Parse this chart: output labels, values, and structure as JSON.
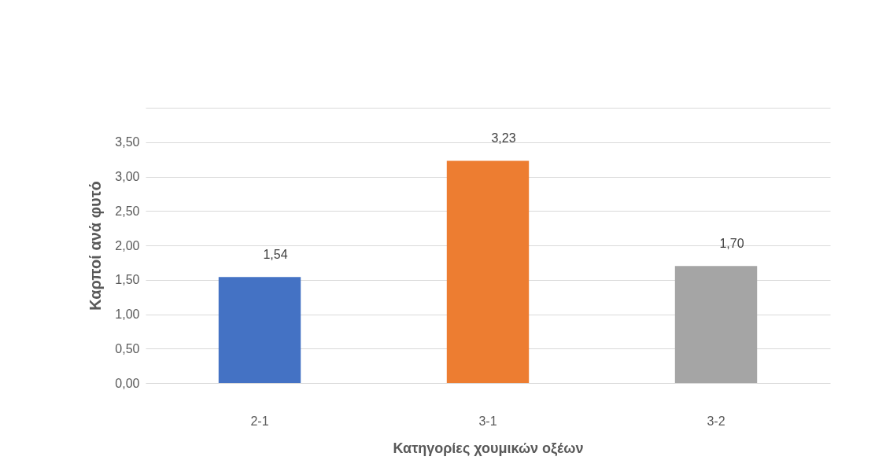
{
  "chart_data": {
    "type": "bar",
    "xlabel": "Κατηγορίες χουμικών οξέων",
    "ylabel": "Καρποί ανά φυτό",
    "categories": [
      "2-1",
      "3-1",
      "3-2"
    ],
    "values": [
      1.54,
      3.23,
      1.7
    ],
    "colors": [
      "#4472c4",
      "#ed7d31",
      "#a5a5a5"
    ],
    "value_labels": [
      "1,54",
      "3,23",
      "1,70"
    ],
    "ylim": [
      0,
      4
    ],
    "yticks": [
      {
        "value": 0,
        "label": "0,00"
      },
      {
        "value": 0.5,
        "label": "0,50"
      },
      {
        "value": 1,
        "label": "1,00"
      },
      {
        "value": 1.5,
        "label": "1,50"
      },
      {
        "value": 2,
        "label": "2,00"
      },
      {
        "value": 2.5,
        "label": "2,50"
      },
      {
        "value": 3,
        "label": "3,00"
      },
      {
        "value": 3.5,
        "label": "3,50"
      },
      {
        "value": 4,
        "label": null
      }
    ],
    "grid": "y",
    "legend": false
  }
}
